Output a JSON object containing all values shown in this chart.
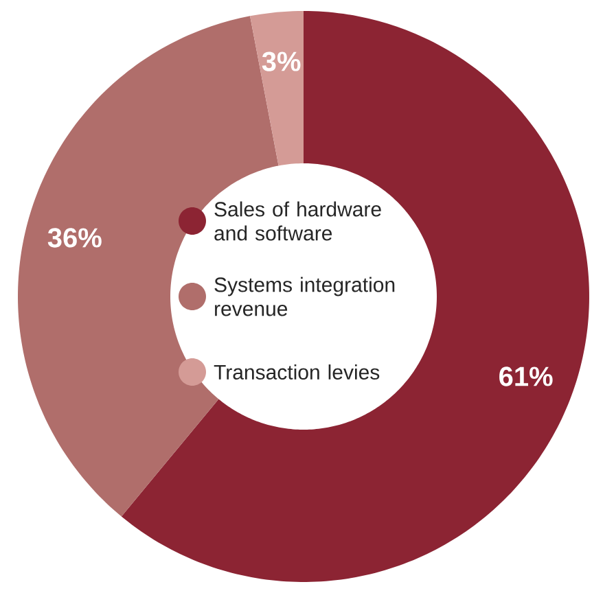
{
  "chart_data": {
    "type": "donut",
    "categories": [
      "Sales of hardware and software",
      "Systems integration revenue",
      "Transaction levies"
    ],
    "values": [
      61,
      36,
      3
    ],
    "colors": [
      "#8c2433",
      "#b06e6b",
      "#d49b96"
    ],
    "value_labels": [
      "61%",
      "36%",
      "3%"
    ],
    "legend": "center"
  }
}
